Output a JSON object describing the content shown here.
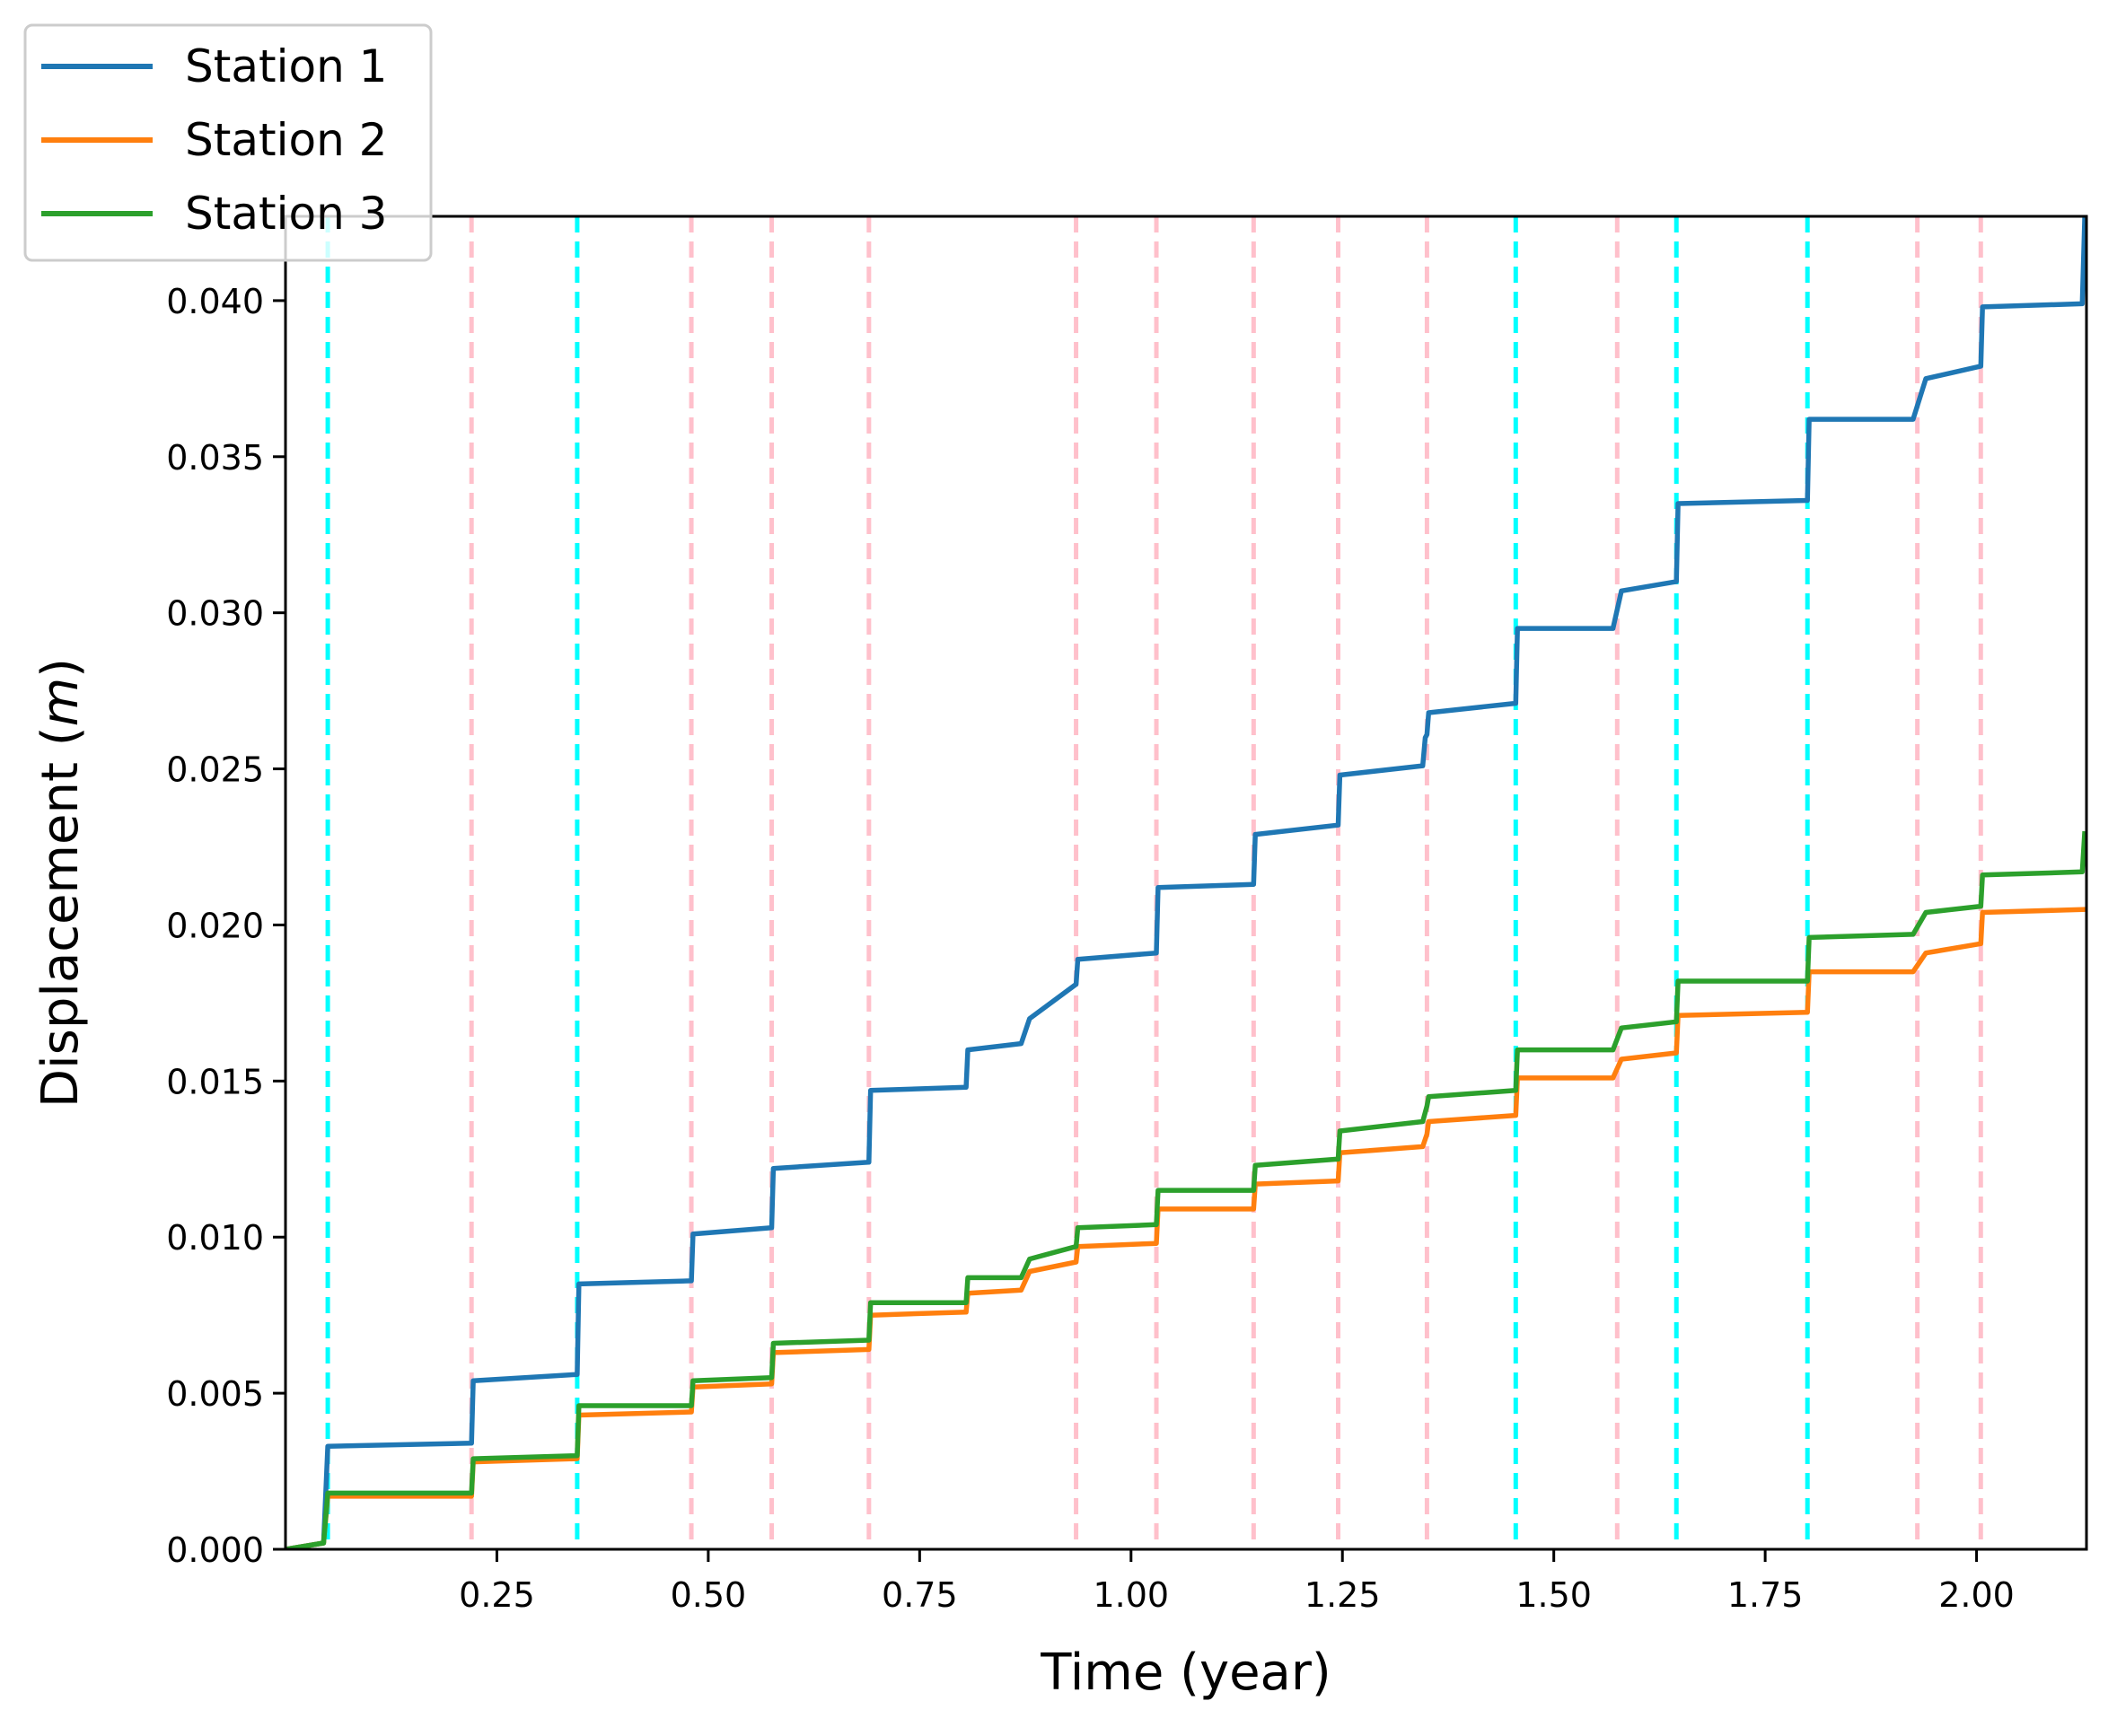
{
  "chart_data": {
    "type": "line",
    "title": "",
    "xlabel": "Time (year)",
    "ylabel_main": "Displacement (",
    "ylabel_unit": "m",
    "ylabel_close": ")",
    "xlim": [
      0.0,
      2.13
    ],
    "ylim": [
      0.0,
      0.0427
    ],
    "xticks": [
      0.25,
      0.5,
      0.75,
      1.0,
      1.25,
      1.5,
      1.75,
      2.0
    ],
    "xtick_labels": [
      "0.25",
      "0.50",
      "0.75",
      "1.00",
      "1.25",
      "1.50",
      "1.75",
      "2.00"
    ],
    "yticks": [
      0.0,
      0.005,
      0.01,
      0.015,
      0.02,
      0.025,
      0.03,
      0.035,
      0.04
    ],
    "ytick_labels": [
      "0.000",
      "0.005",
      "0.010",
      "0.015",
      "0.020",
      "0.025",
      "0.030",
      "0.035",
      "0.040"
    ],
    "legend_position": "top-left",
    "grid": false,
    "event_lines": {
      "cyan": {
        "color": "#00ffff",
        "x": [
          0.05,
          0.345,
          1.455,
          1.645,
          1.8
        ]
      },
      "pink": {
        "color": "#ffc0cb",
        "x": [
          0.22,
          0.48,
          0.575,
          0.69,
          0.935,
          1.03,
          1.145,
          1.245,
          1.35,
          1.575,
          1.93,
          2.005
        ]
      }
    },
    "series": [
      {
        "name": "Station 1",
        "color": "#1f77b4",
        "points": [
          [
            0.0,
            0.0
          ],
          [
            0.045,
            0.0002
          ],
          [
            0.05,
            0.0033
          ],
          [
            0.22,
            0.0034
          ],
          [
            0.222,
            0.0054
          ],
          [
            0.345,
            0.0056
          ],
          [
            0.347,
            0.0085
          ],
          [
            0.48,
            0.0086
          ],
          [
            0.482,
            0.0101
          ],
          [
            0.575,
            0.0103
          ],
          [
            0.577,
            0.0122
          ],
          [
            0.69,
            0.0124
          ],
          [
            0.692,
            0.0147
          ],
          [
            0.805,
            0.0148
          ],
          [
            0.807,
            0.016
          ],
          [
            0.87,
            0.0162
          ],
          [
            0.88,
            0.017
          ],
          [
            0.935,
            0.0181
          ],
          [
            0.937,
            0.0189
          ],
          [
            1.03,
            0.0191
          ],
          [
            1.032,
            0.0212
          ],
          [
            1.145,
            0.0213
          ],
          [
            1.147,
            0.0229
          ],
          [
            1.245,
            0.0232
          ],
          [
            1.247,
            0.0248
          ],
          [
            1.345,
            0.0251
          ],
          [
            1.348,
            0.026
          ],
          [
            1.35,
            0.0261
          ],
          [
            1.352,
            0.0268
          ],
          [
            1.455,
            0.0271
          ],
          [
            1.457,
            0.0295
          ],
          [
            1.57,
            0.0295
          ],
          [
            1.58,
            0.0307
          ],
          [
            1.645,
            0.031
          ],
          [
            1.647,
            0.0335
          ],
          [
            1.8,
            0.0336
          ],
          [
            1.802,
            0.0362
          ],
          [
            1.925,
            0.0362
          ],
          [
            1.94,
            0.0375
          ],
          [
            2.005,
            0.0379
          ],
          [
            2.007,
            0.0398
          ],
          [
            2.125,
            0.0399
          ],
          [
            2.128,
            0.0427
          ]
        ]
      },
      {
        "name": "Station 2",
        "color": "#ff7f0e",
        "points": [
          [
            0.0,
            0.0
          ],
          [
            0.045,
            0.0002
          ],
          [
            0.05,
            0.0017
          ],
          [
            0.22,
            0.0017
          ],
          [
            0.222,
            0.0028
          ],
          [
            0.345,
            0.0029
          ],
          [
            0.347,
            0.0043
          ],
          [
            0.48,
            0.0044
          ],
          [
            0.482,
            0.0052
          ],
          [
            0.575,
            0.0053
          ],
          [
            0.577,
            0.0063
          ],
          [
            0.69,
            0.0064
          ],
          [
            0.692,
            0.0075
          ],
          [
            0.805,
            0.0076
          ],
          [
            0.807,
            0.0082
          ],
          [
            0.87,
            0.0083
          ],
          [
            0.88,
            0.0089
          ],
          [
            0.935,
            0.0092
          ],
          [
            0.937,
            0.0097
          ],
          [
            1.03,
            0.0098
          ],
          [
            1.032,
            0.0109
          ],
          [
            1.145,
            0.0109
          ],
          [
            1.147,
            0.0117
          ],
          [
            1.245,
            0.0118
          ],
          [
            1.247,
            0.0127
          ],
          [
            1.345,
            0.0129
          ],
          [
            1.35,
            0.0133
          ],
          [
            1.352,
            0.0137
          ],
          [
            1.455,
            0.0139
          ],
          [
            1.457,
            0.0151
          ],
          [
            1.57,
            0.0151
          ],
          [
            1.58,
            0.0157
          ],
          [
            1.645,
            0.0159
          ],
          [
            1.647,
            0.0171
          ],
          [
            1.8,
            0.0172
          ],
          [
            1.802,
            0.0185
          ],
          [
            1.925,
            0.0185
          ],
          [
            1.94,
            0.0191
          ],
          [
            2.005,
            0.0194
          ],
          [
            2.007,
            0.0204
          ],
          [
            2.13,
            0.0205
          ]
        ]
      },
      {
        "name": "Station 3",
        "color": "#2ca02c",
        "points": [
          [
            0.0,
            0.0
          ],
          [
            0.045,
            0.0002
          ],
          [
            0.05,
            0.0018
          ],
          [
            0.22,
            0.0018
          ],
          [
            0.222,
            0.0029
          ],
          [
            0.345,
            0.003
          ],
          [
            0.347,
            0.0046
          ],
          [
            0.48,
            0.0046
          ],
          [
            0.482,
            0.0054
          ],
          [
            0.575,
            0.0055
          ],
          [
            0.577,
            0.0066
          ],
          [
            0.69,
            0.0067
          ],
          [
            0.692,
            0.0079
          ],
          [
            0.805,
            0.0079
          ],
          [
            0.807,
            0.0087
          ],
          [
            0.87,
            0.0087
          ],
          [
            0.88,
            0.0093
          ],
          [
            0.935,
            0.0097
          ],
          [
            0.937,
            0.0103
          ],
          [
            1.03,
            0.0104
          ],
          [
            1.032,
            0.0115
          ],
          [
            1.145,
            0.0115
          ],
          [
            1.147,
            0.0123
          ],
          [
            1.245,
            0.0125
          ],
          [
            1.247,
            0.0134
          ],
          [
            1.345,
            0.0137
          ],
          [
            1.35,
            0.0142
          ],
          [
            1.352,
            0.0145
          ],
          [
            1.455,
            0.0147
          ],
          [
            1.457,
            0.016
          ],
          [
            1.57,
            0.016
          ],
          [
            1.58,
            0.0167
          ],
          [
            1.645,
            0.0169
          ],
          [
            1.647,
            0.0182
          ],
          [
            1.8,
            0.0182
          ],
          [
            1.802,
            0.0196
          ],
          [
            1.925,
            0.0197
          ],
          [
            1.94,
            0.0204
          ],
          [
            2.005,
            0.0206
          ],
          [
            2.007,
            0.0216
          ],
          [
            2.125,
            0.0217
          ],
          [
            2.128,
            0.023
          ]
        ]
      }
    ]
  }
}
